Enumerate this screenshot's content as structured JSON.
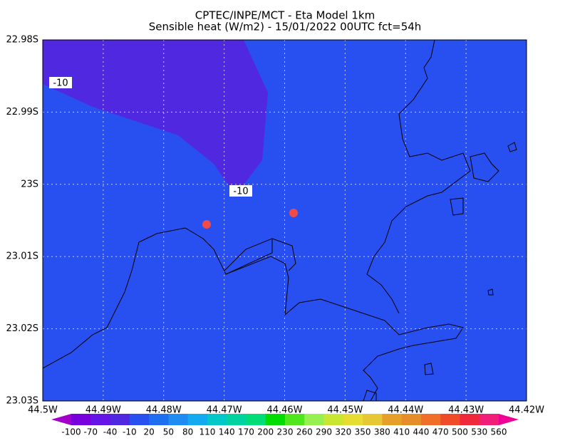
{
  "chart_data": {
    "type": "contour-map",
    "title": "CPTEC/INPE/MCT -  Eta Model 1km",
    "subtitle": "Sensible heat (W/m2) - 15/01/2022 00UTC fct=54h",
    "xlim": [
      -44.5,
      -44.42
    ],
    "ylim": [
      -23.03,
      -22.98
    ],
    "xticks": [
      {
        "value": -44.5,
        "label": "44.5W"
      },
      {
        "value": -44.49,
        "label": "44.49W"
      },
      {
        "value": -44.48,
        "label": "44.48W"
      },
      {
        "value": -44.47,
        "label": "44.47W"
      },
      {
        "value": -44.46,
        "label": "44.46W"
      },
      {
        "value": -44.45,
        "label": "44.45W"
      },
      {
        "value": -44.44,
        "label": "44.44W"
      },
      {
        "value": -44.43,
        "label": "44.43W"
      },
      {
        "value": -44.42,
        "label": "44.42W"
      }
    ],
    "yticks": [
      {
        "value": -22.98,
        "label": "22.98S"
      },
      {
        "value": -22.99,
        "label": "22.99S"
      },
      {
        "value": -23,
        "label": "23S"
      },
      {
        "value": -23.01,
        "label": "23.01S"
      },
      {
        "value": -23.02,
        "label": "23.02S"
      },
      {
        "value": -23.03,
        "label": "23.03S"
      }
    ],
    "grid": true,
    "contour_labels": [
      -10,
      -10
    ],
    "colorbar": {
      "levels": [
        -100,
        -70,
        -40,
        -10,
        20,
        50,
        80,
        110,
        140,
        170,
        200,
        230,
        260,
        290,
        320,
        350,
        380,
        410,
        440,
        470,
        500,
        530,
        560
      ],
      "colors": [
        "#a000c8",
        "#7800dc",
        "#6414e6",
        "#5028e0",
        "#2850f0",
        "#1e6ef0",
        "#1e8cf0",
        "#14aaf0",
        "#00c8c8",
        "#00d2a0",
        "#00dc78",
        "#00dc00",
        "#50e61e",
        "#96f050",
        "#c8e632",
        "#e6dc32",
        "#e6c832",
        "#e6a028",
        "#e68c28",
        "#f06e28",
        "#f04b28",
        "#f0283c",
        "#f01e78",
        "#f00096"
      ]
    }
  }
}
